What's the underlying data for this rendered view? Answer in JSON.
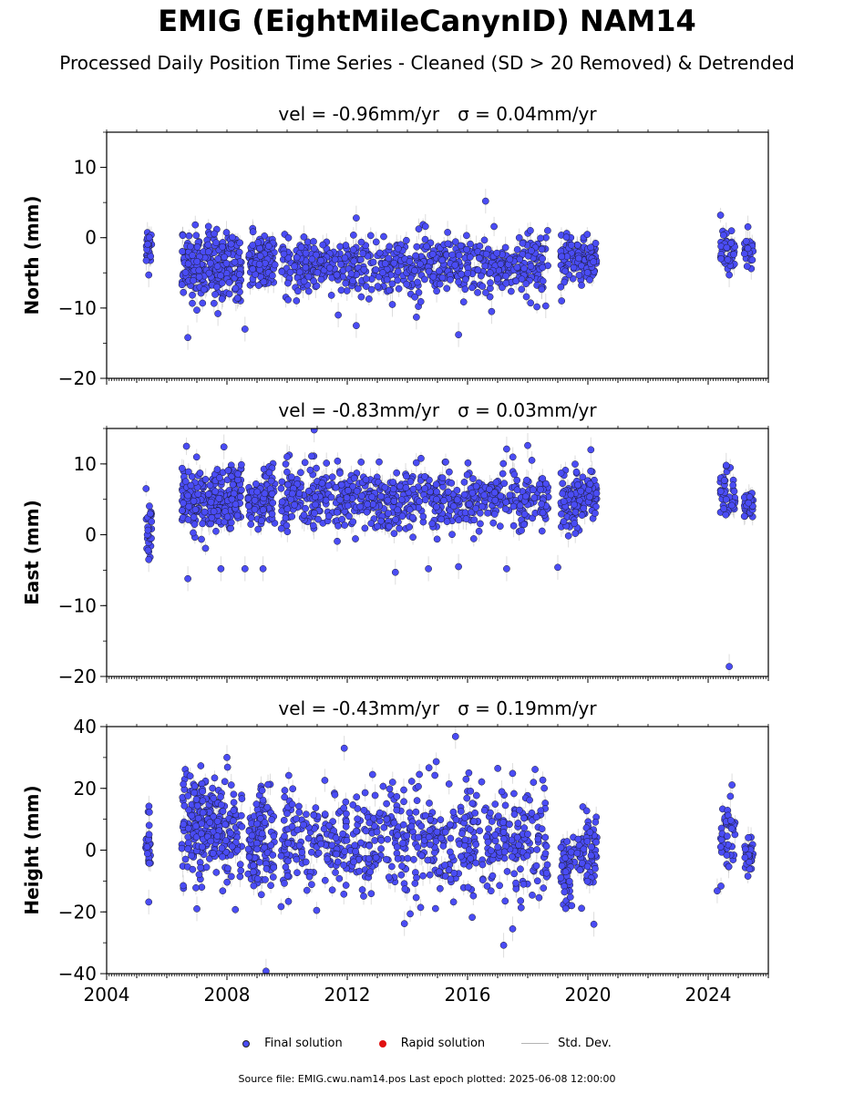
{
  "title": "EMIG (EightMileCanynID) NAM14",
  "subtitle": "Processed Daily Position Time Series - Cleaned (SD > 20 Removed) & Detrended",
  "source_note": "Source file: EMIG.cwu.nam14.pos  Last epoch plotted: 2025-06-08 12:00:00",
  "legend": {
    "final_label": "Final solution",
    "rapid_label": "Rapid solution",
    "std_label": "Std. Dev."
  },
  "colors": {
    "final": "#4a4cf5",
    "rapid": "#e01010",
    "std": "#b4b4b4"
  },
  "chart_data": [
    {
      "type": "scatter",
      "panel": "north",
      "title_vel": "vel = -0.96mm/yr",
      "title_sigma": "σ = 0.04mm/yr",
      "ylabel": "North (mm)",
      "ylim": [
        -20,
        15
      ],
      "yticks": [
        -20,
        -10,
        0,
        10
      ],
      "ytick_labels": [
        "−20",
        "−10",
        "0",
        "10"
      ],
      "xlim": [
        2004.0,
        2026.0
      ],
      "segments": [
        {
          "x": [
            2005.3,
            2005.5
          ],
          "mean": -1,
          "sd": 1.4,
          "n": 28
        },
        {
          "x": [
            2006.5,
            2008.5
          ],
          "mean": -4,
          "sd": 2.2,
          "n": 260
        },
        {
          "x": [
            2008.7,
            2009.6
          ],
          "mean": -3.5,
          "sd": 1.8,
          "n": 110
        },
        {
          "x": [
            2009.8,
            2018.7
          ],
          "mean": -4,
          "sd": 2.1,
          "n": 620
        },
        {
          "x": [
            2019.1,
            2019.9
          ],
          "mean": -3,
          "sd": 1.8,
          "n": 80
        },
        {
          "x": [
            2019.95,
            2020.3
          ],
          "mean": -3,
          "sd": 1.5,
          "n": 40
        },
        {
          "x": [
            2024.4,
            2024.9
          ],
          "mean": -2,
          "sd": 1.6,
          "n": 40
        },
        {
          "x": [
            2025.2,
            2025.5
          ],
          "mean": -1.8,
          "sd": 1.0,
          "n": 30
        }
      ],
      "outliers": [
        {
          "x": 2005.4,
          "y": -5.3
        },
        {
          "x": 2006.7,
          "y": -14.2
        },
        {
          "x": 2007.0,
          "y": -10.3
        },
        {
          "x": 2007.7,
          "y": -10.8
        },
        {
          "x": 2008.6,
          "y": -13.0
        },
        {
          "x": 2011.7,
          "y": -11.0
        },
        {
          "x": 2012.3,
          "y": -12.5
        },
        {
          "x": 2013.5,
          "y": -9.5
        },
        {
          "x": 2014.3,
          "y": -11.3
        },
        {
          "x": 2014.6,
          "y": 1.6
        },
        {
          "x": 2015.7,
          "y": -13.8
        },
        {
          "x": 2016.6,
          "y": 5.2
        },
        {
          "x": 2016.8,
          "y": -10.5
        },
        {
          "x": 2018.6,
          "y": -9.7
        },
        {
          "x": 2019.1,
          "y": -7.0
        },
        {
          "x": 2012.3,
          "y": 2.8
        },
        {
          "x": 2024.7,
          "y": -5.3
        }
      ]
    },
    {
      "type": "scatter",
      "panel": "east",
      "title_vel": "vel = -0.83mm/yr",
      "title_sigma": "σ = 0.03mm/yr",
      "ylabel": "East (mm)",
      "ylim": [
        -20,
        15
      ],
      "yticks": [
        -20,
        -10,
        0,
        10
      ],
      "ytick_labels": [
        "−20",
        "−10",
        "0",
        "10"
      ],
      "xlim": [
        2004.0,
        2026.0
      ],
      "segments": [
        {
          "x": [
            2005.3,
            2005.5
          ],
          "mean": 1.5,
          "sd": 2.0,
          "n": 28
        },
        {
          "x": [
            2006.5,
            2008.5
          ],
          "mean": 5,
          "sd": 2.2,
          "n": 260
        },
        {
          "x": [
            2008.7,
            2009.6
          ],
          "mean": 5,
          "sd": 2.0,
          "n": 110
        },
        {
          "x": [
            2009.8,
            2018.7
          ],
          "mean": 5,
          "sd": 2.1,
          "n": 620
        },
        {
          "x": [
            2019.1,
            2019.9
          ],
          "mean": 5,
          "sd": 2.0,
          "n": 80
        },
        {
          "x": [
            2019.95,
            2020.3
          ],
          "mean": 6,
          "sd": 1.5,
          "n": 40
        },
        {
          "x": [
            2024.4,
            2024.9
          ],
          "mean": 5.5,
          "sd": 1.8,
          "n": 40
        },
        {
          "x": [
            2025.2,
            2025.5
          ],
          "mean": 4,
          "sd": 1.0,
          "n": 30
        }
      ],
      "outliers": [
        {
          "x": 2005.4,
          "y": -3.5
        },
        {
          "x": 2006.7,
          "y": -6.2
        },
        {
          "x": 2007.9,
          "y": 12.4
        },
        {
          "x": 2007.8,
          "y": -4.8
        },
        {
          "x": 2008.6,
          "y": -4.8
        },
        {
          "x": 2009.2,
          "y": -4.8
        },
        {
          "x": 2010.0,
          "y": 11.0
        },
        {
          "x": 2010.9,
          "y": 14.8
        },
        {
          "x": 2013.6,
          "y": -5.3
        },
        {
          "x": 2014.7,
          "y": -4.8
        },
        {
          "x": 2015.7,
          "y": -4.5
        },
        {
          "x": 2017.3,
          "y": -4.8
        },
        {
          "x": 2017.3,
          "y": 12.1
        },
        {
          "x": 2018.0,
          "y": 12.6
        },
        {
          "x": 2019.0,
          "y": -4.6
        },
        {
          "x": 2020.1,
          "y": 12.0
        },
        {
          "x": 2024.7,
          "y": -18.6
        },
        {
          "x": 2024.6,
          "y": 9.8
        }
      ]
    },
    {
      "type": "scatter",
      "panel": "height",
      "title_vel": "vel = -0.43mm/yr",
      "title_sigma": "σ = 0.19mm/yr",
      "ylabel": "Height (mm)",
      "ylim": [
        -40,
        40
      ],
      "yticks": [
        -40,
        -20,
        0,
        20,
        40
      ],
      "ytick_labels": [
        "−40",
        "−20",
        "0",
        "20",
        "40"
      ],
      "xlim": [
        2004.0,
        2026.0
      ],
      "xticks": [
        2004,
        2008,
        2012,
        2016,
        2020,
        2024
      ],
      "xtick_labels": [
        "2004",
        "2008",
        "2012",
        "2016",
        "2020",
        "2024"
      ],
      "segments": [
        {
          "x": [
            2005.3,
            2005.5
          ],
          "mean": 0,
          "sd": 6.0,
          "n": 28
        },
        {
          "x": [
            2006.5,
            2008.5
          ],
          "mean": 7,
          "sd": 8.5,
          "n": 260
        },
        {
          "x": [
            2008.7,
            2009.6
          ],
          "mean": 3,
          "sd": 8.0,
          "n": 110
        },
        {
          "x": [
            2009.8,
            2018.7
          ],
          "mean": 3,
          "sd": 8.5,
          "n": 620
        },
        {
          "x": [
            2019.1,
            2019.9
          ],
          "mean": -3,
          "sd": 7.0,
          "n": 80
        },
        {
          "x": [
            2019.95,
            2020.3
          ],
          "mean": 0,
          "sd": 7.0,
          "n": 40
        },
        {
          "x": [
            2024.4,
            2024.9
          ],
          "mean": 5,
          "sd": 6.5,
          "n": 40
        },
        {
          "x": [
            2025.2,
            2025.5
          ],
          "mean": -1,
          "sd": 3.0,
          "n": 30
        }
      ],
      "outliers": [
        {
          "x": 2005.4,
          "y": -16.8
        },
        {
          "x": 2009.3,
          "y": -39.2
        },
        {
          "x": 2015.6,
          "y": 36.8
        },
        {
          "x": 2008.0,
          "y": 30.0
        },
        {
          "x": 2011.9,
          "y": 33.0
        },
        {
          "x": 2013.9,
          "y": -23.8
        },
        {
          "x": 2017.2,
          "y": -30.8
        },
        {
          "x": 2017.5,
          "y": -25.5
        },
        {
          "x": 2020.2,
          "y": -24.0
        },
        {
          "x": 2024.3,
          "y": -13.2
        },
        {
          "x": 2007.0,
          "y": -19.0
        }
      ]
    }
  ]
}
